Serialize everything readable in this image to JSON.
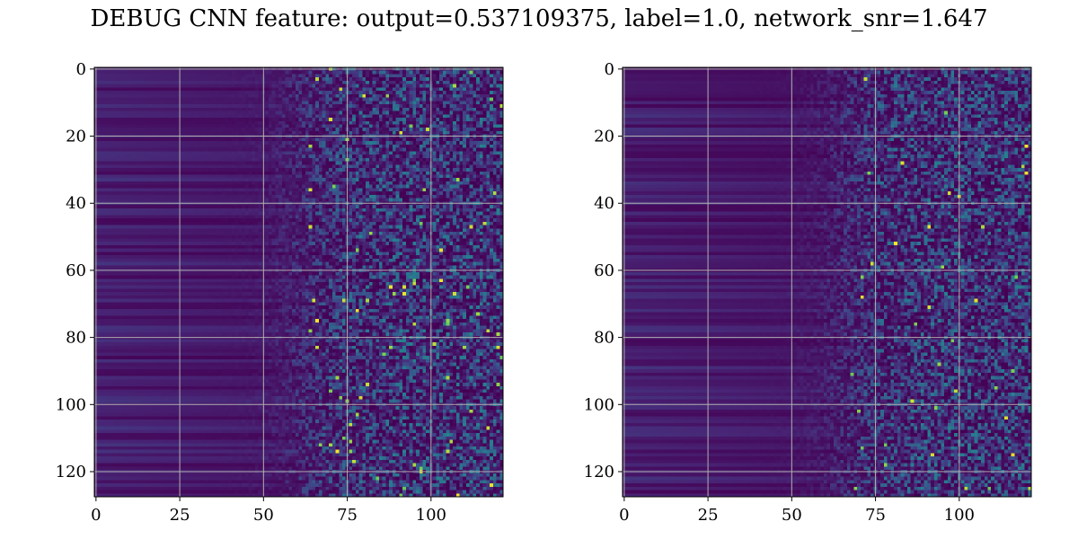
{
  "title": "DEBUG CNN feature: output=0.537109375, label=1.0, network_snr=1.647",
  "chart_data": [
    {
      "type": "heatmap",
      "colormap": "viridis",
      "rows": 128,
      "cols": 122,
      "xlim": [
        -0.5,
        121.5
      ],
      "ylim": [
        127.5,
        -0.5
      ],
      "xticks": [
        0,
        25,
        50,
        75,
        100
      ],
      "yticks": [
        0,
        20,
        40,
        60,
        80,
        100,
        120
      ],
      "grid": true,
      "grid_color": "#b0b0b0",
      "structure": "left ~45 columns low (dark purple, horizontal row striping); right ~50 columns noisy with occasional bright yellow/green pixels",
      "seed": 11
    },
    {
      "type": "heatmap",
      "colormap": "viridis",
      "rows": 128,
      "cols": 122,
      "xlim": [
        -0.5,
        121.5
      ],
      "ylim": [
        127.5,
        -0.5
      ],
      "xticks": [
        0,
        25,
        50,
        75,
        100
      ],
      "yticks": [
        0,
        20,
        40,
        60,
        80,
        100,
        120
      ],
      "grid": true,
      "grid_color": "#b0b0b0",
      "structure": "left ~50 columns dark purple with faint row striping; right ~50 columns noisy teal/green speckle",
      "seed": 29
    }
  ]
}
